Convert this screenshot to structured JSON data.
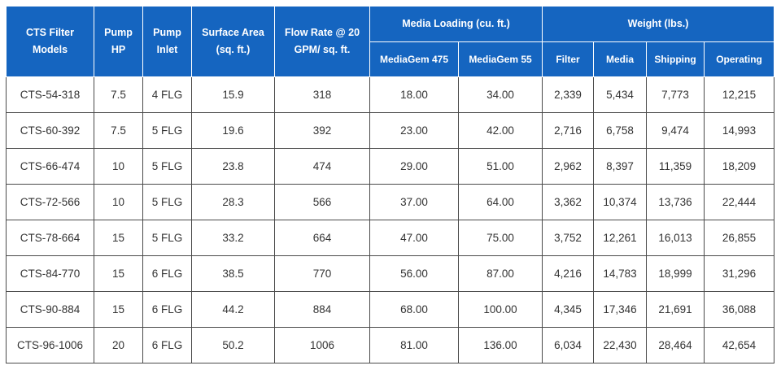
{
  "headers": {
    "model": "CTS Filter Models",
    "pump_hp": "Pump HP",
    "pump_inlet": "Pump Inlet",
    "surface_area": "Surface Area (sq. ft.)",
    "flow_rate": "Flow Rate @ 20 GPM/ sq. ft.",
    "media_loading": "Media Loading (cu. ft.)",
    "weight": "Weight (lbs.)",
    "mediagem_475": "MediaGem 475",
    "mediagem_55": "MediaGem 55",
    "filter": "Filter",
    "media": "Media",
    "shipping": "Shipping",
    "operating": "Operating"
  },
  "rows": [
    [
      "CTS-54-318",
      "7.5",
      "4 FLG",
      "15.9",
      "318",
      "18.00",
      "34.00",
      "2,339",
      "5,434",
      "7,773",
      "12,215"
    ],
    [
      "CTS-60-392",
      "7.5",
      "5 FLG",
      "19.6",
      "392",
      "23.00",
      "42.00",
      "2,716",
      "6,758",
      "9,474",
      "14,993"
    ],
    [
      "CTS-66-474",
      "10",
      "5 FLG",
      "23.8",
      "474",
      "29.00",
      "51.00",
      "2,962",
      "8,397",
      "11,359",
      "18,209"
    ],
    [
      "CTS-72-566",
      "10",
      "5 FLG",
      "28.3",
      "566",
      "37.00",
      "64.00",
      "3,362",
      "10,374",
      "13,736",
      "22,444"
    ],
    [
      "CTS-78-664",
      "15",
      "5 FLG",
      "33.2",
      "664",
      "47.00",
      "75.00",
      "3,752",
      "12,261",
      "16,013",
      "26,855"
    ],
    [
      "CTS-84-770",
      "15",
      "6 FLG",
      "38.5",
      "770",
      "56.00",
      "87.00",
      "4,216",
      "14,783",
      "18,999",
      "31,296"
    ],
    [
      "CTS-90-884",
      "15",
      "6 FLG",
      "44.2",
      "884",
      "68.00",
      "100.00",
      "4,345",
      "17,346",
      "21,691",
      "36,088"
    ],
    [
      "CTS-96-1006",
      "20",
      "6 FLG",
      "50.2",
      "1006",
      "81.00",
      "136.00",
      "6,034",
      "22,430",
      "28,464",
      "42,654"
    ]
  ],
  "colors": {
    "header_bg": "#1565c0",
    "header_text": "#ffffff",
    "cell_text": "#333333",
    "grid": "#4a4a4a"
  }
}
